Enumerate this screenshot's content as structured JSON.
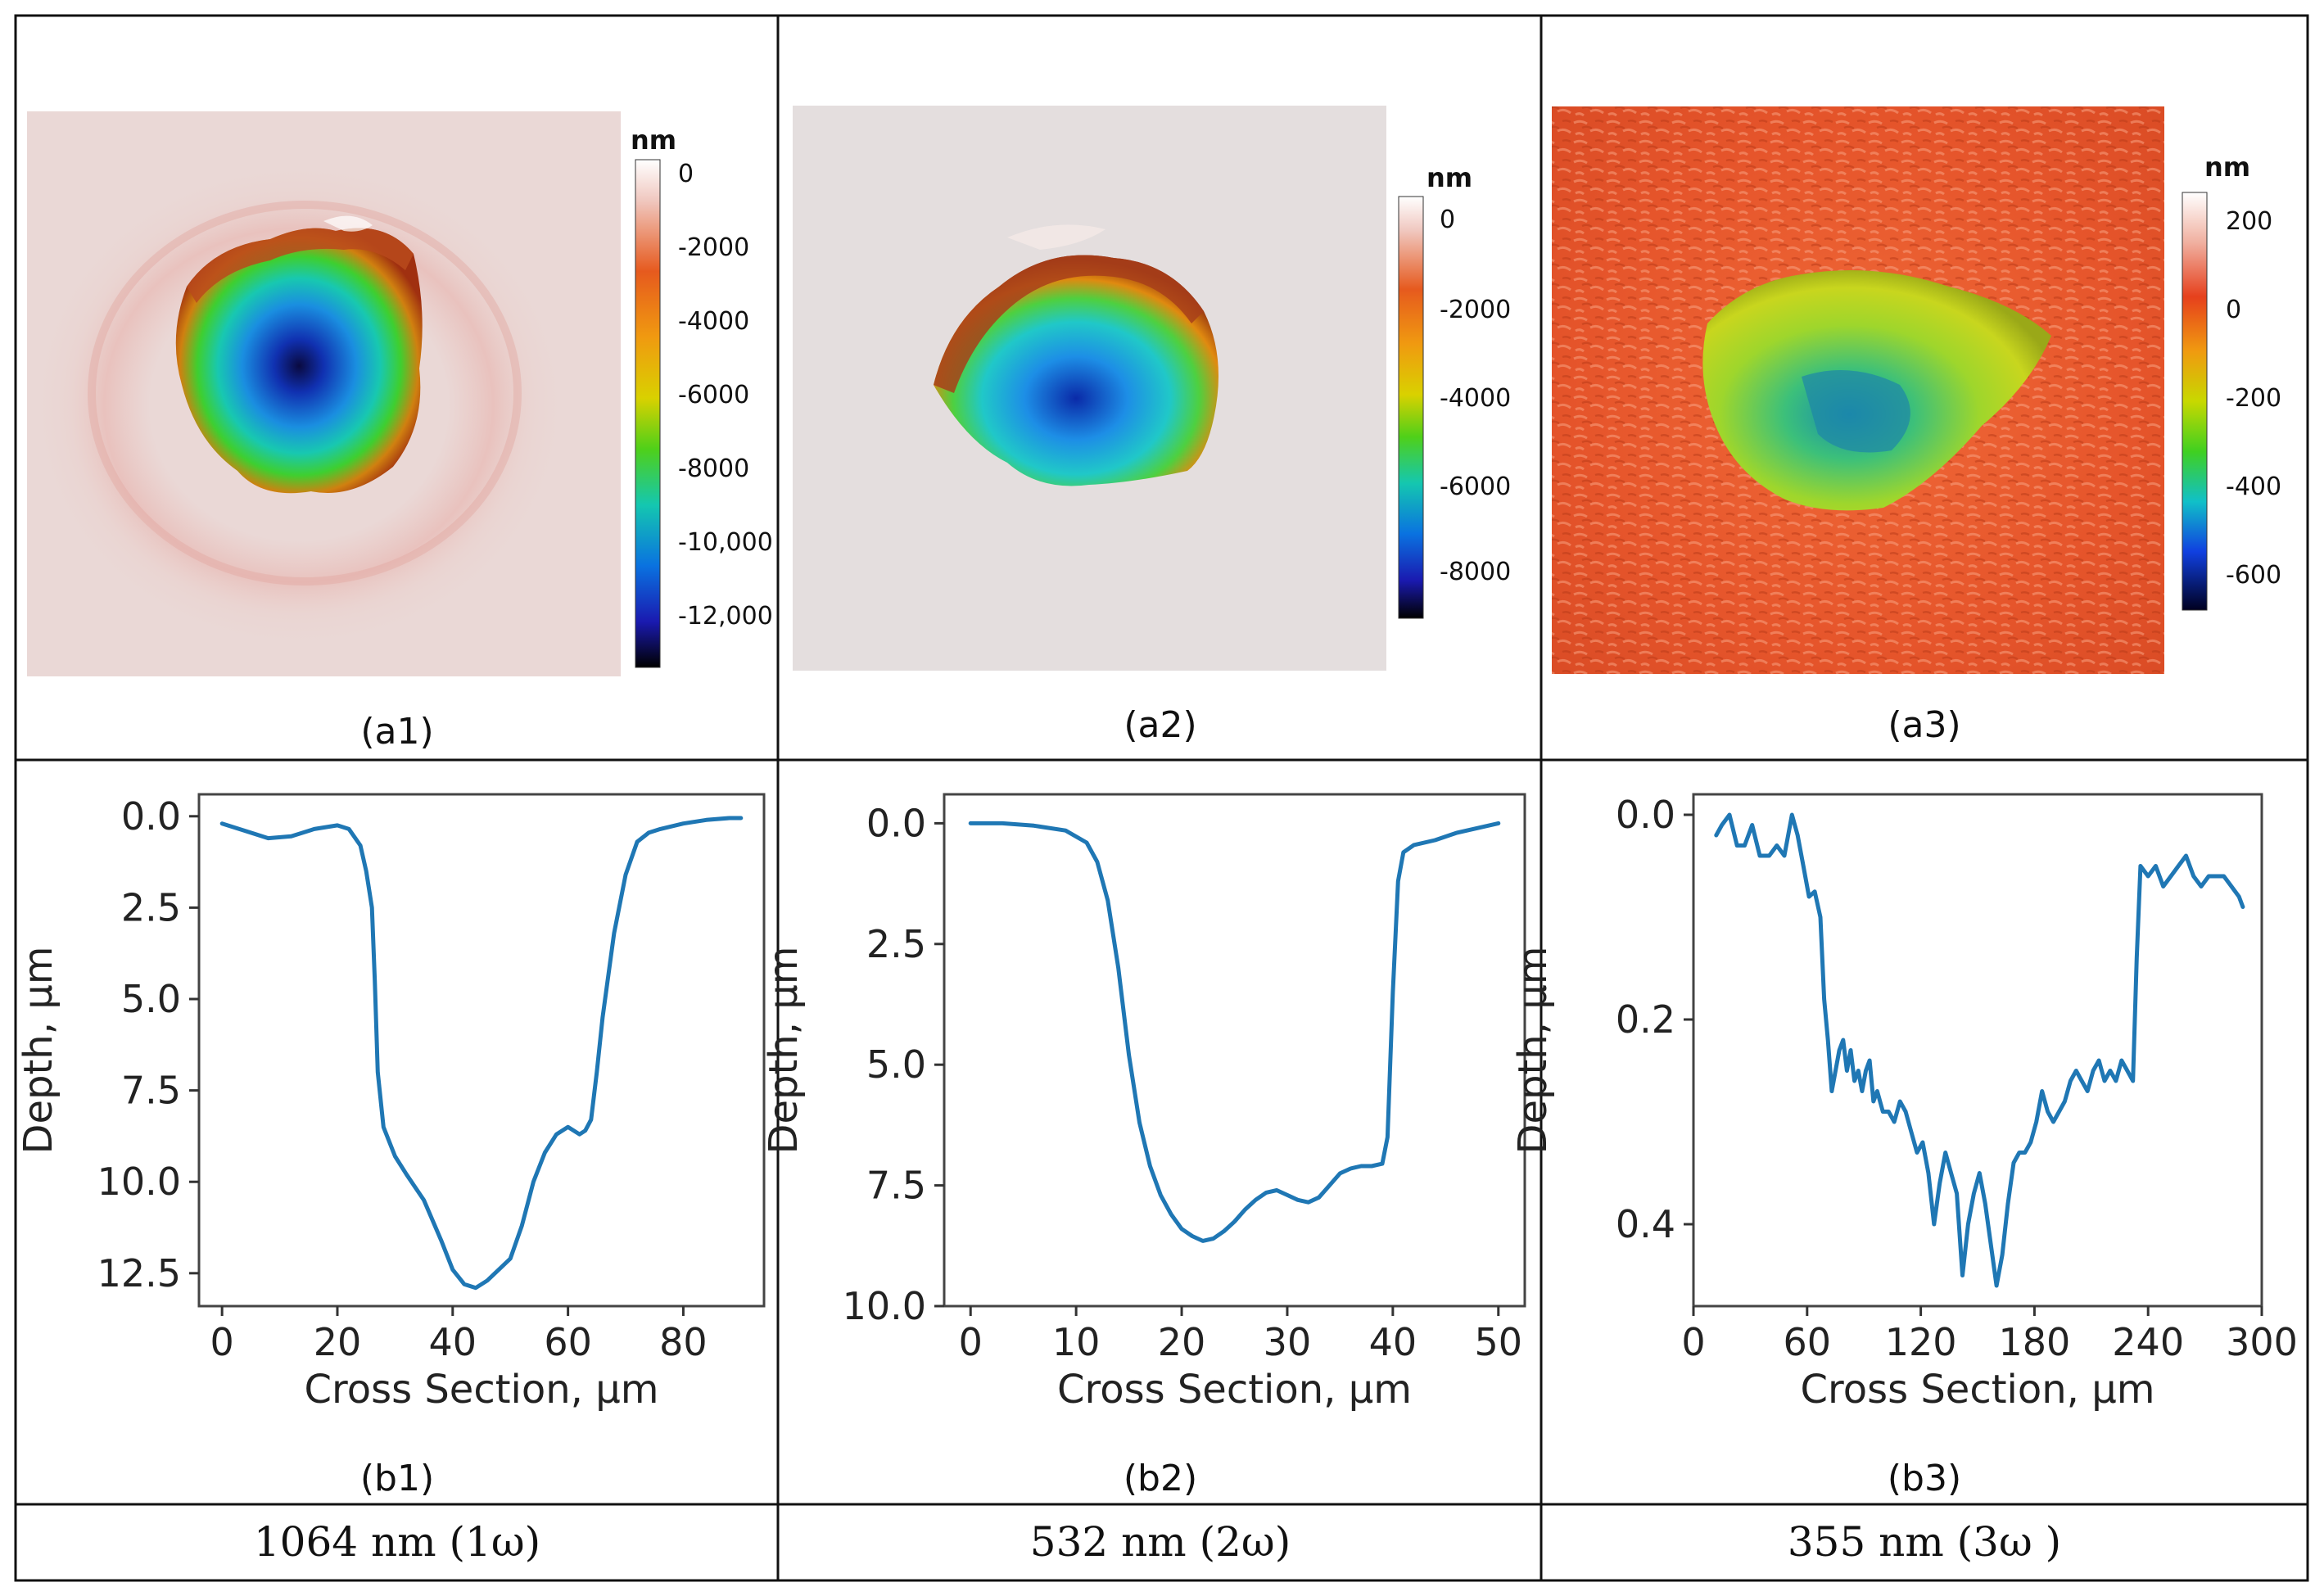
{
  "columns": [
    {
      "wavelength": "1064 nm (1ω)",
      "top_caption": "(a1)",
      "bottom_caption": "(b1)"
    },
    {
      "wavelength": "532 nm (2ω)",
      "top_caption": "(a2)",
      "bottom_caption": "(b2)"
    },
    {
      "wavelength": "355 nm (3ω )",
      "top_caption": "(a3)",
      "bottom_caption": "(b3)"
    }
  ],
  "colorbars": [
    {
      "unit": "nm",
      "ticks": [
        "0",
        "-2000",
        "-4000",
        "-6000",
        "-8000",
        "-10,000",
        "-12,000"
      ]
    },
    {
      "unit": "nm",
      "ticks": [
        "0",
        "-2000",
        "-4000",
        "-6000",
        "-8000"
      ]
    },
    {
      "unit": "nm",
      "ticks": [
        "200",
        "0",
        "-200",
        "-400",
        "-600"
      ]
    }
  ],
  "colors": {
    "line": "#1f77b4",
    "surface": "#ead8d6",
    "surface3": "#e8542a"
  },
  "chart_data": [
    {
      "type": "line",
      "title": "",
      "xlabel": "Cross Section, μm",
      "ylabel": "Depth, μm",
      "xlim": [
        -4,
        94
      ],
      "ylim": [
        13.4,
        -0.6
      ],
      "y_inverted": true,
      "xticks": [
        0,
        20,
        40,
        60,
        80
      ],
      "xtick_labels": [
        "0",
        "20",
        "40",
        "60",
        "80"
      ],
      "yticks": [
        0,
        2.5,
        5,
        7.5,
        10,
        12.5
      ],
      "ytick_labels": [
        "0.0",
        "2.5",
        "5.0",
        "7.5",
        "10.0",
        "12.5"
      ],
      "series": [
        {
          "name": "depth profile 1064 nm",
          "x": [
            0,
            4,
            8,
            12,
            16,
            20,
            22,
            24,
            25,
            26,
            26.5,
            27,
            28,
            30,
            32,
            35,
            38,
            40,
            42,
            44,
            46,
            48,
            50,
            52,
            54,
            56,
            58,
            60,
            61,
            62,
            63,
            64,
            65,
            66,
            68,
            70,
            72,
            74,
            76,
            80,
            84,
            88,
            90
          ],
          "y": [
            0.2,
            0.4,
            0.6,
            0.55,
            0.35,
            0.25,
            0.35,
            0.8,
            1.5,
            2.5,
            4.5,
            7.0,
            8.5,
            9.3,
            9.8,
            10.5,
            11.6,
            12.4,
            12.8,
            12.9,
            12.7,
            12.4,
            12.1,
            11.2,
            10.0,
            9.2,
            8.7,
            8.5,
            8.6,
            8.7,
            8.6,
            8.3,
            7.0,
            5.5,
            3.2,
            1.6,
            0.7,
            0.45,
            0.35,
            0.2,
            0.1,
            0.05,
            0.05
          ]
        }
      ]
    },
    {
      "type": "line",
      "title": "",
      "xlabel": "Cross Section, μm",
      "ylabel": "Depth, μm",
      "xlim": [
        -2.5,
        52.5
      ],
      "ylim": [
        10.0,
        -0.6
      ],
      "y_inverted": true,
      "xticks": [
        0,
        10,
        20,
        30,
        40,
        50
      ],
      "xtick_labels": [
        "0",
        "10",
        "20",
        "30",
        "40",
        "50"
      ],
      "yticks": [
        0,
        2.5,
        5,
        7.5,
        10
      ],
      "ytick_labels": [
        "0.0",
        "2.5",
        "5.0",
        "7.5",
        "10.0"
      ],
      "series": [
        {
          "name": "depth profile 532 nm",
          "x": [
            0,
            3,
            6,
            9,
            11,
            12,
            13,
            14,
            15,
            16,
            17,
            18,
            19,
            20,
            21,
            22,
            23,
            24,
            25,
            26,
            27,
            28,
            29,
            30,
            31,
            32,
            33,
            34,
            35,
            36,
            37,
            38,
            39,
            39.5,
            40,
            40.5,
            41,
            42,
            44,
            46,
            48,
            50
          ],
          "y": [
            0.0,
            0.0,
            0.05,
            0.15,
            0.4,
            0.8,
            1.6,
            3.0,
            4.8,
            6.2,
            7.1,
            7.7,
            8.1,
            8.4,
            8.55,
            8.65,
            8.6,
            8.45,
            8.25,
            8.0,
            7.8,
            7.65,
            7.6,
            7.7,
            7.8,
            7.85,
            7.75,
            7.5,
            7.25,
            7.15,
            7.1,
            7.1,
            7.05,
            6.5,
            3.5,
            1.2,
            0.6,
            0.45,
            0.35,
            0.2,
            0.1,
            0.0
          ]
        }
      ]
    },
    {
      "type": "line",
      "title": "",
      "xlabel": "Cross Section, μm",
      "ylabel": "Depth, μm",
      "xlim": [
        0,
        300
      ],
      "ylim": [
        0.48,
        -0.02
      ],
      "y_inverted": true,
      "xticks": [
        0,
        60,
        120,
        180,
        240,
        300
      ],
      "xtick_labels": [
        "0",
        "60",
        "120",
        "180",
        "240",
        "300"
      ],
      "yticks": [
        0,
        0.2,
        0.4
      ],
      "ytick_labels": [
        "0.0",
        "0.2",
        "0.4"
      ],
      "series": [
        {
          "name": "depth profile 355 nm",
          "x": [
            12,
            15,
            19,
            23,
            27,
            31,
            35,
            40,
            44,
            48,
            52,
            55,
            58,
            61,
            64,
            67,
            69,
            71,
            73,
            75,
            77,
            79,
            81,
            83,
            85,
            87,
            89,
            91,
            93,
            95,
            97,
            100,
            103,
            106,
            109,
            112,
            115,
            118,
            121,
            124,
            127,
            130,
            133,
            136,
            139,
            142,
            145,
            148,
            151,
            154,
            157,
            160,
            163,
            166,
            169,
            172,
            175,
            178,
            181,
            184,
            187,
            190,
            193,
            196,
            199,
            202,
            205,
            208,
            211,
            214,
            217,
            220,
            223,
            226,
            229,
            232,
            234,
            236,
            240,
            244,
            248,
            252,
            256,
            260,
            264,
            268,
            272,
            276,
            280,
            284,
            288,
            290
          ],
          "y": [
            0.02,
            0.01,
            0.0,
            0.03,
            0.03,
            0.01,
            0.04,
            0.04,
            0.03,
            0.04,
            0.0,
            0.02,
            0.05,
            0.08,
            0.075,
            0.1,
            0.18,
            0.22,
            0.27,
            0.25,
            0.23,
            0.22,
            0.25,
            0.23,
            0.26,
            0.25,
            0.27,
            0.25,
            0.24,
            0.28,
            0.27,
            0.29,
            0.29,
            0.3,
            0.28,
            0.29,
            0.31,
            0.33,
            0.32,
            0.35,
            0.4,
            0.36,
            0.33,
            0.35,
            0.37,
            0.45,
            0.4,
            0.37,
            0.35,
            0.38,
            0.42,
            0.46,
            0.43,
            0.38,
            0.34,
            0.33,
            0.33,
            0.32,
            0.3,
            0.27,
            0.29,
            0.3,
            0.29,
            0.28,
            0.26,
            0.25,
            0.26,
            0.27,
            0.25,
            0.24,
            0.26,
            0.25,
            0.26,
            0.24,
            0.25,
            0.26,
            0.14,
            0.05,
            0.06,
            0.05,
            0.07,
            0.06,
            0.05,
            0.04,
            0.06,
            0.07,
            0.06,
            0.06,
            0.06,
            0.07,
            0.08,
            0.09
          ]
        }
      ]
    }
  ]
}
